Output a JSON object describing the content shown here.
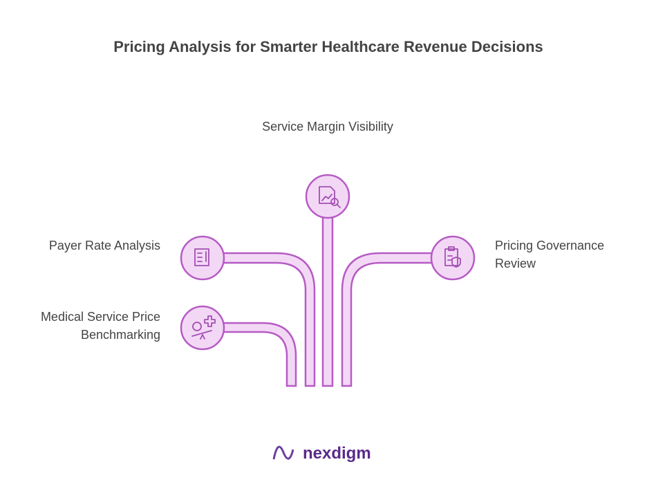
{
  "title": "Pricing Analysis for Smarter Healthcare Revenue Decisions",
  "nodes": [
    {
      "label": "Service Margin Visibility"
    },
    {
      "label": "Payer Rate Analysis"
    },
    {
      "label": "Medical Service Price Benchmarking"
    },
    {
      "label": "Pricing Governance Review"
    }
  ],
  "brand": "nexdigm"
}
